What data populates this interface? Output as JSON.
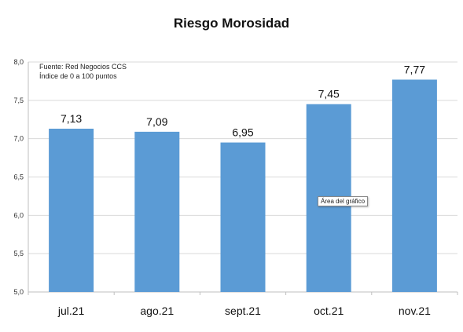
{
  "chart_data": {
    "type": "bar",
    "title": "Riesgo Morosidad",
    "notes": [
      "Fuente: Red Negocios CCS",
      "Índice de 0 a 100 puntos"
    ],
    "categories": [
      "jul.21",
      "ago.21",
      "sept.21",
      "oct.21",
      "nov.21"
    ],
    "values": [
      7.13,
      7.09,
      6.95,
      7.45,
      7.77
    ],
    "value_labels": [
      "7,13",
      "7,09",
      "6,95",
      "7,45",
      "7,77"
    ],
    "ylim": [
      5.0,
      8.0
    ],
    "yticks": [
      5.0,
      5.5,
      6.0,
      6.5,
      7.0,
      7.5,
      8.0
    ],
    "ytick_labels": [
      "5,0",
      "5,5",
      "6,0",
      "6,5",
      "7,0",
      "7,5",
      "8,0"
    ],
    "grid": true,
    "xlabel": "",
    "ylabel": "",
    "bar_color": "#5b9bd5",
    "grid_color": "#d9d9d9"
  },
  "tooltip": "Área del gráfico"
}
